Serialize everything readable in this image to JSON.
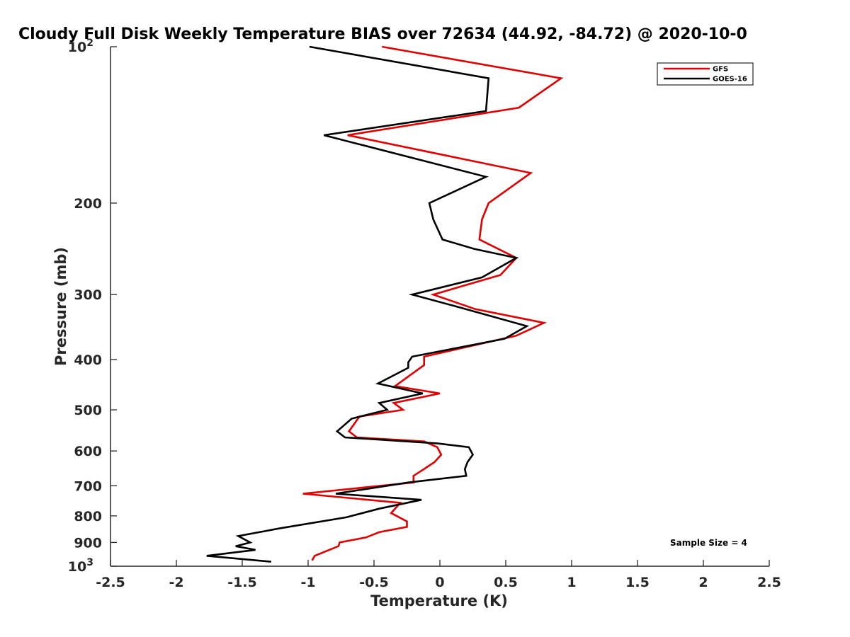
{
  "chart_data": {
    "type": "line",
    "title": "Cloudy Full Disk Weekly Temperature BIAS over 72634 (44.92, -84.72) @ 2020-10-0",
    "xlabel": "Temperature (K)",
    "ylabel": "Pressure (mb)",
    "xlim": [
      -2.5,
      2.5
    ],
    "ylim": [
      100,
      1000
    ],
    "y_scale": "log",
    "y_reversed": true,
    "x_ticks": [
      "-2.5",
      "-2",
      "-1.5",
      "-1",
      "-0.5",
      "0",
      "0.5",
      "1",
      "1.5",
      "2",
      "2.5"
    ],
    "y_ticks": [
      {
        "value": 100,
        "base": "10",
        "exp": "2",
        "text": ""
      },
      {
        "value": 200,
        "text": "200"
      },
      {
        "value": 300,
        "text": "300"
      },
      {
        "value": 400,
        "text": "400"
      },
      {
        "value": 500,
        "text": "500"
      },
      {
        "value": 600,
        "text": "600"
      },
      {
        "value": 700,
        "text": "700"
      },
      {
        "value": 800,
        "text": "800"
      },
      {
        "value": 900,
        "text": "900"
      },
      {
        "value": 1000,
        "base": "10",
        "exp": "3",
        "text": ""
      }
    ],
    "legend": {
      "placement": "top-right",
      "entries": [
        "GFS",
        "GOES-16"
      ]
    },
    "annotation": "Sample Size = 4",
    "series": [
      {
        "name": "GFS",
        "color": "#e00000",
        "points": [
          [
            -0.44,
            100
          ],
          [
            0.92,
            115
          ],
          [
            0.6,
            131
          ],
          [
            -0.7,
            148
          ],
          [
            0.69,
            175
          ],
          [
            0.37,
            200
          ],
          [
            0.32,
            215
          ],
          [
            0.3,
            235
          ],
          [
            0.58,
            255
          ],
          [
            0.46,
            275
          ],
          [
            -0.05,
            300
          ],
          [
            0.27,
            320
          ],
          [
            0.79,
            340
          ],
          [
            0.58,
            360
          ],
          [
            -0.12,
            395
          ],
          [
            -0.12,
            410
          ],
          [
            -0.34,
            450
          ],
          [
            0.0,
            465
          ],
          [
            -0.35,
            485
          ],
          [
            -0.28,
            500
          ],
          [
            -0.61,
            515
          ],
          [
            -0.69,
            550
          ],
          [
            -0.63,
            565
          ],
          [
            -0.12,
            575
          ],
          [
            -0.02,
            590
          ],
          [
            0.01,
            610
          ],
          [
            -0.04,
            630
          ],
          [
            -0.12,
            650
          ],
          [
            -0.2,
            670
          ],
          [
            -0.2,
            690
          ],
          [
            -1.04,
            725
          ],
          [
            -0.3,
            755
          ],
          [
            -0.37,
            790
          ],
          [
            -0.25,
            820
          ],
          [
            -0.25,
            840
          ],
          [
            -0.46,
            860
          ],
          [
            -0.56,
            880
          ],
          [
            -0.76,
            900
          ],
          [
            -0.77,
            915
          ],
          [
            -0.95,
            955
          ],
          [
            -0.97,
            975
          ]
        ]
      },
      {
        "name": "GOES-16",
        "color": "#000000",
        "points": [
          [
            -0.99,
            100
          ],
          [
            0.37,
            115
          ],
          [
            0.35,
            133
          ],
          [
            -0.88,
            148
          ],
          [
            0.35,
            178
          ],
          [
            -0.08,
            200
          ],
          [
            -0.05,
            215
          ],
          [
            0.02,
            235
          ],
          [
            0.26,
            245
          ],
          [
            0.58,
            255
          ],
          [
            0.32,
            278
          ],
          [
            -0.21,
            300
          ],
          [
            0.1,
            315
          ],
          [
            0.66,
            345
          ],
          [
            0.49,
            365
          ],
          [
            -0.21,
            395
          ],
          [
            -0.24,
            405
          ],
          [
            -0.24,
            415
          ],
          [
            -0.47,
            445
          ],
          [
            -0.13,
            465
          ],
          [
            -0.46,
            485
          ],
          [
            -0.4,
            500
          ],
          [
            -0.67,
            520
          ],
          [
            -0.78,
            550
          ],
          [
            -0.72,
            565
          ],
          [
            -0.02,
            580
          ],
          [
            0.22,
            590
          ],
          [
            0.25,
            610
          ],
          [
            0.21,
            630
          ],
          [
            0.19,
            650
          ],
          [
            0.2,
            670
          ],
          [
            -0.24,
            690
          ],
          [
            -0.79,
            725
          ],
          [
            -0.14,
            745
          ],
          [
            -0.46,
            775
          ],
          [
            -0.71,
            805
          ],
          [
            -1.21,
            845
          ],
          [
            -1.53,
            875
          ],
          [
            -1.44,
            900
          ],
          [
            -1.55,
            915
          ],
          [
            -1.4,
            930
          ],
          [
            -1.77,
            955
          ],
          [
            -1.28,
            980
          ]
        ]
      }
    ]
  }
}
